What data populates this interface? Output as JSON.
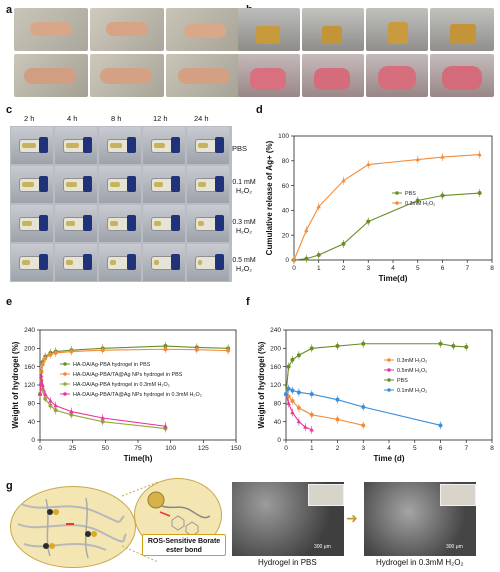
{
  "panels": {
    "a": "a",
    "b": "b",
    "c": "c",
    "d": "d",
    "e": "e",
    "f": "f",
    "g": "g"
  },
  "panel_c": {
    "times": [
      "2 h",
      "4 h",
      "8 h",
      "12 h",
      "24 h"
    ],
    "conditions": [
      "PBS",
      "0.1 mM H₂O₂",
      "0.3 mM H₂O₂",
      "0.5 mM H₂O₂"
    ]
  },
  "panel_g": {
    "callout": "ROS-Sensitive Borate ester bond",
    "sem_left_caption": "Hydrogel in PBS",
    "sem_right_caption": "Hydrogel in 0.3mM H₂O₂",
    "scale_left": "300 μm",
    "scale_right": "300 μm"
  },
  "colors": {
    "green": "#6b8e23",
    "orange": "#f28c3a",
    "pink": "#e8359a",
    "blue": "#3a8fd9"
  },
  "chart_data": [
    {
      "panel": "d",
      "type": "line",
      "xlabel": "Time(d)",
      "ylabel": "Cumulative release of Ag+ (%)",
      "xlim": [
        0,
        8
      ],
      "ylim": [
        0,
        100
      ],
      "xticks": [
        0,
        1,
        2,
        3,
        4,
        5,
        6,
        7,
        8
      ],
      "yticks": [
        0,
        20,
        40,
        60,
        80,
        100
      ],
      "legend_position": "center-right",
      "series": [
        {
          "name": "PBS",
          "color": "green",
          "x": [
            0,
            0.5,
            1,
            2,
            3,
            5,
            6,
            7.5
          ],
          "y": [
            0,
            1,
            4,
            13,
            31,
            48,
            52,
            54
          ]
        },
        {
          "name": "0.3mM H₂O₂",
          "color": "orange",
          "x": [
            0,
            0.5,
            1,
            2,
            3,
            5,
            6,
            7.5
          ],
          "y": [
            0,
            24,
            43,
            64,
            77,
            81,
            83,
            85
          ]
        }
      ]
    },
    {
      "panel": "e",
      "type": "line",
      "xlabel": "Time(h)",
      "ylabel": "Weight of hydrogel (%)",
      "xlim": [
        0,
        150
      ],
      "ylim": [
        0,
        240
      ],
      "xticks": [
        0,
        25,
        50,
        75,
        100,
        125,
        150
      ],
      "yticks": [
        0,
        40,
        80,
        120,
        160,
        200,
        240
      ],
      "legend_position": "center",
      "series": [
        {
          "name": "HA-DA/Ag-PBA hydrogel in PBS",
          "color": "green",
          "x": [
            0,
            1,
            2,
            4,
            8,
            12,
            24,
            48,
            96,
            120,
            144
          ],
          "y": [
            100,
            150,
            170,
            182,
            190,
            193,
            196,
            200,
            205,
            202,
            200
          ]
        },
        {
          "name": "HA-DA/Ag-PBA/TA@Ag NPs hydrogel in PBS",
          "color": "orange",
          "x": [
            0,
            1,
            2,
            4,
            8,
            12,
            24,
            48,
            96,
            120,
            144
          ],
          "y": [
            100,
            148,
            165,
            178,
            186,
            190,
            193,
            196,
            198,
            197,
            195
          ]
        },
        {
          "name": "HA-DA/Ag-PBA hydrogel in 0.3mM H₂O₂",
          "color": "olive",
          "x": [
            0,
            1,
            2,
            4,
            8,
            12,
            24,
            48,
            96
          ],
          "y": [
            100,
            130,
            110,
            90,
            75,
            65,
            55,
            40,
            25
          ]
        },
        {
          "name": "HA-DA/Ag-PBA/TA@Ag NPs hydrogel in 0.3mM H₂O₂",
          "color": "pink",
          "x": [
            0,
            1,
            2,
            4,
            8,
            12,
            24,
            48,
            96
          ],
          "y": [
            100,
            140,
            120,
            100,
            85,
            75,
            62,
            48,
            30
          ]
        }
      ]
    },
    {
      "panel": "f",
      "type": "line",
      "xlabel": "Time (d)",
      "ylabel": "Weight of hydrogel (%)",
      "xlim": [
        0,
        8
      ],
      "ylim": [
        0,
        240
      ],
      "xticks": [
        0,
        1,
        2,
        3,
        4,
        5,
        6,
        7,
        8
      ],
      "yticks": [
        0,
        40,
        80,
        120,
        160,
        200,
        240
      ],
      "legend_position": "center",
      "series": [
        {
          "name": "0.3mM H₂O₂",
          "color": "orange",
          "x": [
            0,
            0.1,
            0.25,
            0.5,
            1,
            2,
            3
          ],
          "y": [
            100,
            95,
            85,
            70,
            55,
            45,
            32
          ]
        },
        {
          "name": "0.5mM H₂O₂",
          "color": "pink",
          "x": [
            0,
            0.1,
            0.25,
            0.5,
            0.75,
            1
          ],
          "y": [
            100,
            80,
            60,
            40,
            28,
            22
          ]
        },
        {
          "name": "PBS",
          "color": "green",
          "x": [
            0,
            0.1,
            0.25,
            0.5,
            1,
            2,
            3,
            6,
            6.5,
            7
          ],
          "y": [
            100,
            160,
            175,
            185,
            200,
            205,
            210,
            210,
            205,
            203
          ]
        },
        {
          "name": "0.1mM H₂O₂",
          "color": "blue",
          "x": [
            0,
            0.1,
            0.25,
            0.5,
            1,
            2,
            3,
            6
          ],
          "y": [
            100,
            112,
            108,
            104,
            100,
            88,
            72,
            32
          ]
        }
      ]
    }
  ]
}
